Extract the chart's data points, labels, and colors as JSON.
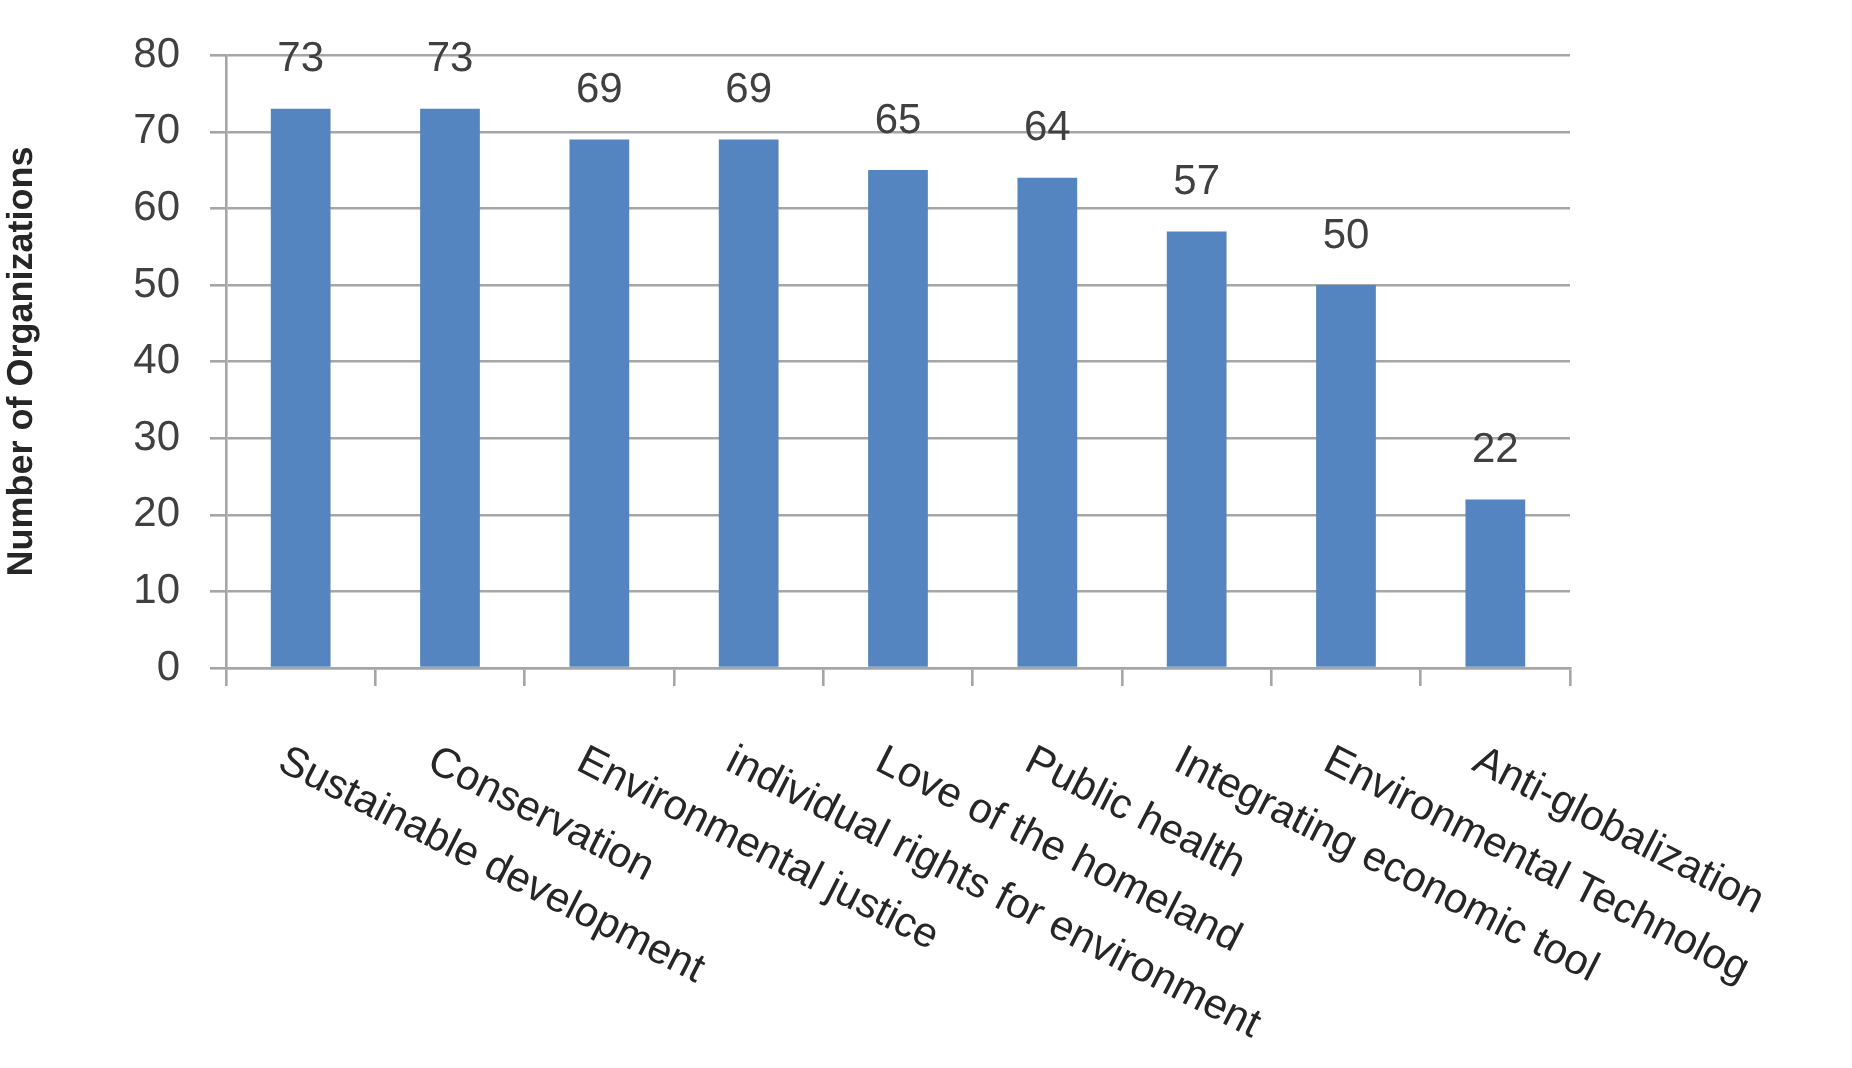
{
  "chart_data": {
    "type": "bar",
    "ylabel": "Number of Organizations",
    "categories": [
      "Sustainable development",
      "Conservation",
      "Environmental justice",
      "individual rights for environment",
      "Love of the homeland",
      "Public health",
      "Integrating economic tool",
      "Environmental Technolog",
      "Anti-globalization"
    ],
    "values": [
      73,
      73,
      69,
      69,
      65,
      64,
      57,
      50,
      22
    ],
    "color": "#5585c0",
    "ylim": [
      0,
      80
    ],
    "yticks": [
      0,
      10,
      20,
      30,
      40,
      50,
      60,
      70,
      80
    ],
    "grid": "y",
    "data_labels": true
  }
}
